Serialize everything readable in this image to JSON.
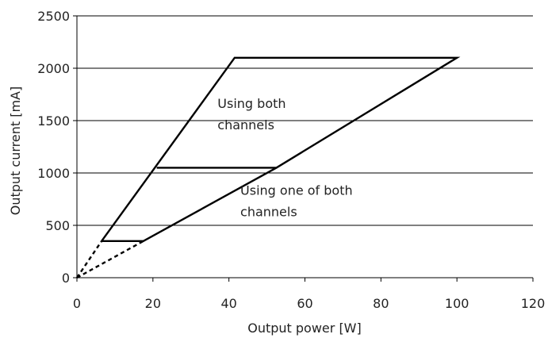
{
  "chart_data": {
    "type": "line",
    "title": "",
    "xlabel": "Output power [W]",
    "ylabel": "Output current [mA]",
    "xlim": [
      0,
      120
    ],
    "ylim": [
      0,
      2500
    ],
    "x_ticks": [
      0,
      20,
      40,
      60,
      80,
      100,
      120
    ],
    "y_ticks": [
      0,
      500,
      1000,
      1500,
      2000,
      2500
    ],
    "grid": "horizontal",
    "legend": "none",
    "series": [
      {
        "style": "solid",
        "x": [
          6.5,
          17.5,
          52.5,
          100,
          41.5,
          6.5
        ],
        "y": [
          350,
          350,
          1050,
          2100,
          2100,
          350
        ]
      },
      {
        "style": "solid",
        "x": [
          21,
          52.5
        ],
        "y": [
          1050,
          1050
        ]
      },
      {
        "style": "dashed",
        "x": [
          0,
          6.5
        ],
        "y": [
          0,
          350
        ]
      },
      {
        "style": "dashed",
        "x": [
          0,
          17.5
        ],
        "y": [
          0,
          350
        ]
      }
    ],
    "annotations": [
      {
        "lines": [
          "Using both",
          "channels"
        ],
        "x": 37,
        "y": 1620
      },
      {
        "lines": [
          "Using one of both",
          "channels"
        ],
        "x": 43,
        "y": 790
      }
    ]
  },
  "colors": {
    "line": "#000000",
    "grid": "#000000",
    "text": "#222222"
  }
}
